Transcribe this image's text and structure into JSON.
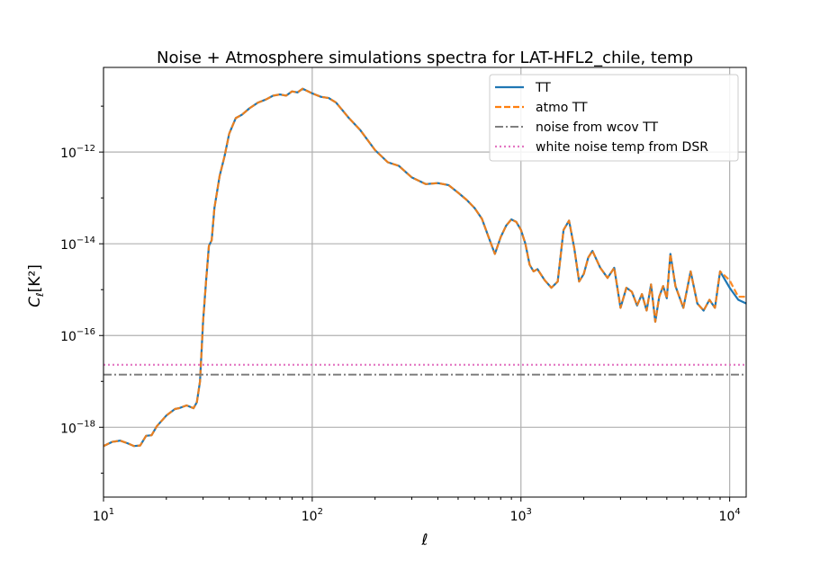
{
  "chart_data": {
    "type": "line",
    "title": "Noise + Atmosphere simulations spectra for LAT-HFL2_chile, temp",
    "xlabel": "ℓ",
    "ylabel_main": "C",
    "ylabel_sub": "ℓ",
    "ylabel_unit": "[K²]",
    "xscale": "log",
    "yscale": "log",
    "xlim": [
      10,
      12000
    ],
    "ylim": [
      3e-20,
      7e-11
    ],
    "grid": true,
    "legend_placement": "top-right",
    "xticks": [
      {
        "value": 10,
        "base": "10",
        "exp": "1"
      },
      {
        "value": 100,
        "base": "10",
        "exp": "2"
      },
      {
        "value": 1000,
        "base": "10",
        "exp": "3"
      },
      {
        "value": 10000,
        "base": "10",
        "exp": "4"
      }
    ],
    "yticks": [
      {
        "value": 1e-18,
        "base": "10",
        "exp": "−18"
      },
      {
        "value": 1e-16,
        "base": "10",
        "exp": "−16"
      },
      {
        "value": 1e-14,
        "base": "10",
        "exp": "−14"
      },
      {
        "value": 1e-12,
        "base": "10",
        "exp": "−12"
      }
    ],
    "series": [
      {
        "name": "TT",
        "color": "#1f77b4",
        "style": "solid",
        "x": [
          10,
          11,
          12,
          13,
          14,
          15,
          16,
          17,
          18,
          20,
          22,
          23,
          25,
          27,
          28,
          29,
          30,
          31,
          32,
          33,
          34,
          36,
          38,
          40,
          43,
          46,
          50,
          55,
          60,
          65,
          70,
          75,
          80,
          85,
          90,
          100,
          110,
          120,
          130,
          140,
          150,
          170,
          200,
          230,
          260,
          300,
          350,
          400,
          450,
          500,
          550,
          600,
          650,
          700,
          750,
          800,
          850,
          900,
          950,
          1000,
          1050,
          1100,
          1150,
          1200,
          1300,
          1400,
          1500,
          1600,
          1700,
          1800,
          1900,
          2000,
          2100,
          2200,
          2400,
          2600,
          2800,
          3000,
          3200,
          3400,
          3600,
          3800,
          4000,
          4200,
          4400,
          4600,
          4800,
          5000,
          5200,
          5500,
          6000,
          6500,
          7000,
          7500,
          8000,
          8500,
          9000,
          10000,
          11000,
          12000
        ],
        "y": [
          3.9e-19,
          4.8e-19,
          5.1e-19,
          4.5e-19,
          3.9e-19,
          4e-19,
          6.5e-19,
          6.7e-19,
          1.05e-18,
          1.8e-18,
          2.5e-18,
          2.6e-18,
          3e-18,
          2.6e-18,
          3.5e-18,
          1e-17,
          2e-16,
          1.5e-15,
          9e-15,
          1.2e-14,
          6e-14,
          3e-13,
          8e-13,
          2.5e-12,
          5.5e-12,
          6.5e-12,
          9e-12,
          1.2e-11,
          1.4e-11,
          1.7e-11,
          1.8e-11,
          1.7e-11,
          2.1e-11,
          2e-11,
          2.4e-11,
          1.9e-11,
          1.6e-11,
          1.5e-11,
          1.2e-11,
          8e-12,
          5.5e-12,
          3e-12,
          1.1e-12,
          6e-13,
          5e-13,
          2.8e-13,
          2e-13,
          2.1e-13,
          1.9e-13,
          1.3e-13,
          9e-14,
          6e-14,
          3.5e-14,
          1.4e-14,
          6e-15,
          1.4e-14,
          2.5e-14,
          3.4e-14,
          3e-14,
          2e-14,
          1e-14,
          3.5e-15,
          2.5e-15,
          2.8e-15,
          1.6e-15,
          1.1e-15,
          1.5e-15,
          2e-14,
          3.2e-14,
          8e-15,
          1.5e-15,
          2.2e-15,
          5e-15,
          7e-15,
          3e-15,
          1.8e-15,
          3e-15,
          4e-16,
          1.1e-15,
          9e-16,
          4.5e-16,
          8e-16,
          3.5e-16,
          1.3e-15,
          2e-16,
          7e-16,
          1.2e-15,
          6.5e-16,
          6e-15,
          1.2e-15,
          4e-16,
          2.5e-15,
          5e-16,
          3.5e-16,
          6e-16,
          4e-16,
          2.5e-15,
          1.1e-15,
          6e-16,
          5e-16
        ]
      },
      {
        "name": "atmo TT",
        "color": "#ff7f0e",
        "style": "dashed",
        "x": [
          10,
          11,
          12,
          13,
          14,
          15,
          16,
          17,
          18,
          20,
          22,
          23,
          25,
          27,
          28,
          29,
          30,
          31,
          32,
          33,
          34,
          36,
          38,
          40,
          43,
          46,
          50,
          55,
          60,
          65,
          70,
          75,
          80,
          85,
          90,
          100,
          110,
          120,
          130,
          140,
          150,
          170,
          200,
          230,
          260,
          300,
          350,
          400,
          450,
          500,
          550,
          600,
          650,
          700,
          750,
          800,
          850,
          900,
          950,
          1000,
          1050,
          1100,
          1150,
          1200,
          1300,
          1400,
          1500,
          1600,
          1700,
          1800,
          1900,
          2000,
          2100,
          2200,
          2400,
          2600,
          2800,
          3000,
          3200,
          3400,
          3600,
          3800,
          4000,
          4200,
          4400,
          4600,
          4800,
          5000,
          5200,
          5500,
          6000,
          6500,
          7000,
          7500,
          8000,
          8500,
          9000,
          10000,
          11000,
          12000
        ],
        "y": [
          3.9e-19,
          4.8e-19,
          5.1e-19,
          4.5e-19,
          3.9e-19,
          4e-19,
          6.5e-19,
          6.7e-19,
          1.05e-18,
          1.8e-18,
          2.5e-18,
          2.6e-18,
          3e-18,
          2.6e-18,
          3.5e-18,
          1e-17,
          2e-16,
          1.5e-15,
          9e-15,
          1.2e-14,
          6e-14,
          3e-13,
          8e-13,
          2.5e-12,
          5.5e-12,
          6.5e-12,
          9e-12,
          1.2e-11,
          1.4e-11,
          1.7e-11,
          1.8e-11,
          1.7e-11,
          2.1e-11,
          2e-11,
          2.4e-11,
          1.9e-11,
          1.6e-11,
          1.5e-11,
          1.2e-11,
          8e-12,
          5.5e-12,
          3e-12,
          1.1e-12,
          6e-13,
          5e-13,
          2.8e-13,
          2e-13,
          2.1e-13,
          1.9e-13,
          1.3e-13,
          9e-14,
          6e-14,
          3.5e-14,
          1.4e-14,
          6e-15,
          1.4e-14,
          2.5e-14,
          3.4e-14,
          3e-14,
          2e-14,
          1e-14,
          3.5e-15,
          2.5e-15,
          2.8e-15,
          1.6e-15,
          1.1e-15,
          1.5e-15,
          2e-14,
          3.2e-14,
          8e-15,
          1.5e-15,
          2.2e-15,
          5e-15,
          7e-15,
          3e-15,
          1.8e-15,
          3e-15,
          4e-16,
          1.1e-15,
          9e-16,
          4.5e-16,
          8e-16,
          3.5e-16,
          1.3e-15,
          2e-16,
          7e-16,
          1.2e-15,
          6.5e-16,
          6e-15,
          1.2e-15,
          4e-16,
          2.5e-15,
          5e-16,
          3.5e-16,
          6e-16,
          4e-16,
          2.5e-15,
          1.6e-15,
          7e-16,
          7e-16
        ]
      },
      {
        "name": "noise from wcov TT",
        "color": "#7f7f7f",
        "style": "dashdot",
        "x": [
          10,
          12000
        ],
        "y": [
          1.4e-17,
          1.4e-17
        ]
      },
      {
        "name": "white noise temp from DSR",
        "color": "#e377c2",
        "style": "dotted",
        "x": [
          10,
          12000
        ],
        "y": [
          2.3e-17,
          2.3e-17
        ]
      }
    ]
  }
}
